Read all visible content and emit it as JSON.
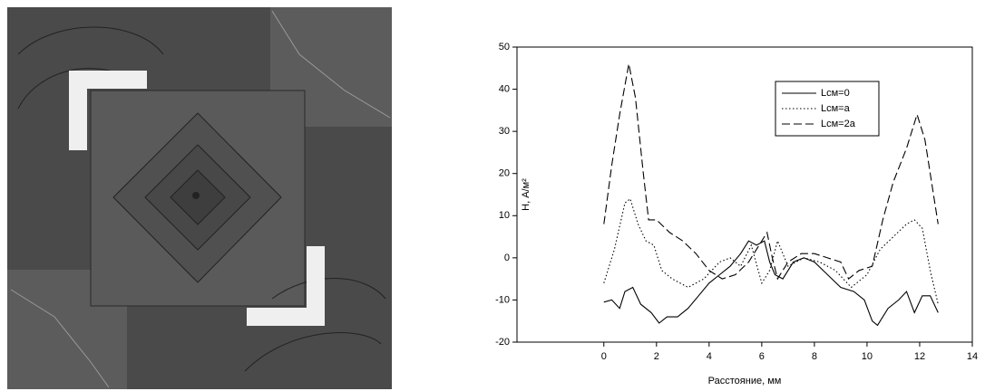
{
  "chart_data": {
    "type": "line",
    "xlabel": "Расстояние, мм",
    "ylabel": "Н, А/м²",
    "xlim": [
      -3.3,
      14
    ],
    "xticks": [
      0,
      2,
      4,
      6,
      8,
      10,
      12,
      14
    ],
    "ylim": [
      -20,
      50
    ],
    "yticks": [
      -20,
      -10,
      0,
      10,
      20,
      30,
      40,
      50
    ],
    "series": [
      {
        "name": "Lсм=0",
        "color": "#000000",
        "dash": "solid",
        "x": [
          0,
          0.3,
          0.6,
          0.8,
          1.1,
          1.4,
          1.8,
          2.1,
          2.4,
          2.8,
          3.2,
          3.6,
          4,
          4.4,
          4.8,
          5.2,
          5.5,
          5.8,
          6.1,
          6.3,
          6.5,
          6.8,
          7.2,
          7.6,
          8,
          8.5,
          9,
          9.5,
          9.9,
          10.2,
          10.4,
          10.8,
          11.2,
          11.5,
          11.8,
          12.1,
          12.4,
          12.7
        ],
        "values": [
          -10.5,
          -10,
          -12,
          -8,
          -7,
          -11,
          -13,
          -15.5,
          -14,
          -14,
          -12,
          -9,
          -6,
          -4,
          -2,
          1,
          4,
          3,
          4,
          -1,
          -4,
          -5,
          -1,
          0,
          -1,
          -4,
          -7,
          -8,
          -10,
          -15,
          -16,
          -12,
          -10,
          -8,
          -13,
          -9,
          -9,
          -13
        ]
      },
      {
        "name": "Lсм=a",
        "color": "#000000",
        "dash": "dotted",
        "x": [
          0,
          0.4,
          0.8,
          1.0,
          1.3,
          1.6,
          1.9,
          2.2,
          2.6,
          3.2,
          3.8,
          4.4,
          4.8,
          5.2,
          5.6,
          6.0,
          6.3,
          6.6,
          7.0,
          7.6,
          8.2,
          8.8,
          9.4,
          10,
          10.5,
          11,
          11.5,
          11.8,
          12.1,
          12.4,
          12.7
        ],
        "values": [
          -6,
          2,
          13,
          14,
          8,
          4,
          3,
          -3,
          -5,
          -7,
          -5,
          -1,
          0,
          -2,
          3,
          -6,
          -3,
          4,
          -2,
          0,
          -1,
          -3,
          -7,
          -4,
          2,
          5,
          8,
          9,
          7,
          -3,
          -11
        ]
      },
      {
        "name": "Lсм=2a",
        "color": "#000000",
        "dash": "dashed",
        "x": [
          0,
          0.3,
          0.6,
          0.95,
          1.2,
          1.5,
          1.7,
          2.0,
          2.5,
          3.0,
          3.5,
          4.0,
          4.5,
          5.0,
          5.5,
          6.0,
          6.2,
          6.4,
          6.6,
          7.0,
          7.5,
          8.0,
          8.5,
          9.0,
          9.3,
          9.7,
          10.2,
          10.6,
          11.0,
          11.5,
          11.9,
          12.2,
          12.5,
          12.7
        ],
        "values": [
          8,
          22,
          34,
          46,
          38,
          20,
          9,
          9,
          6,
          4,
          1,
          -3,
          -5,
          -4,
          -1,
          4,
          6,
          0,
          -5,
          -1,
          1,
          1,
          0,
          -1,
          -5,
          -3,
          -2,
          9,
          18,
          26,
          34,
          28,
          16,
          8
        ]
      }
    ]
  }
}
